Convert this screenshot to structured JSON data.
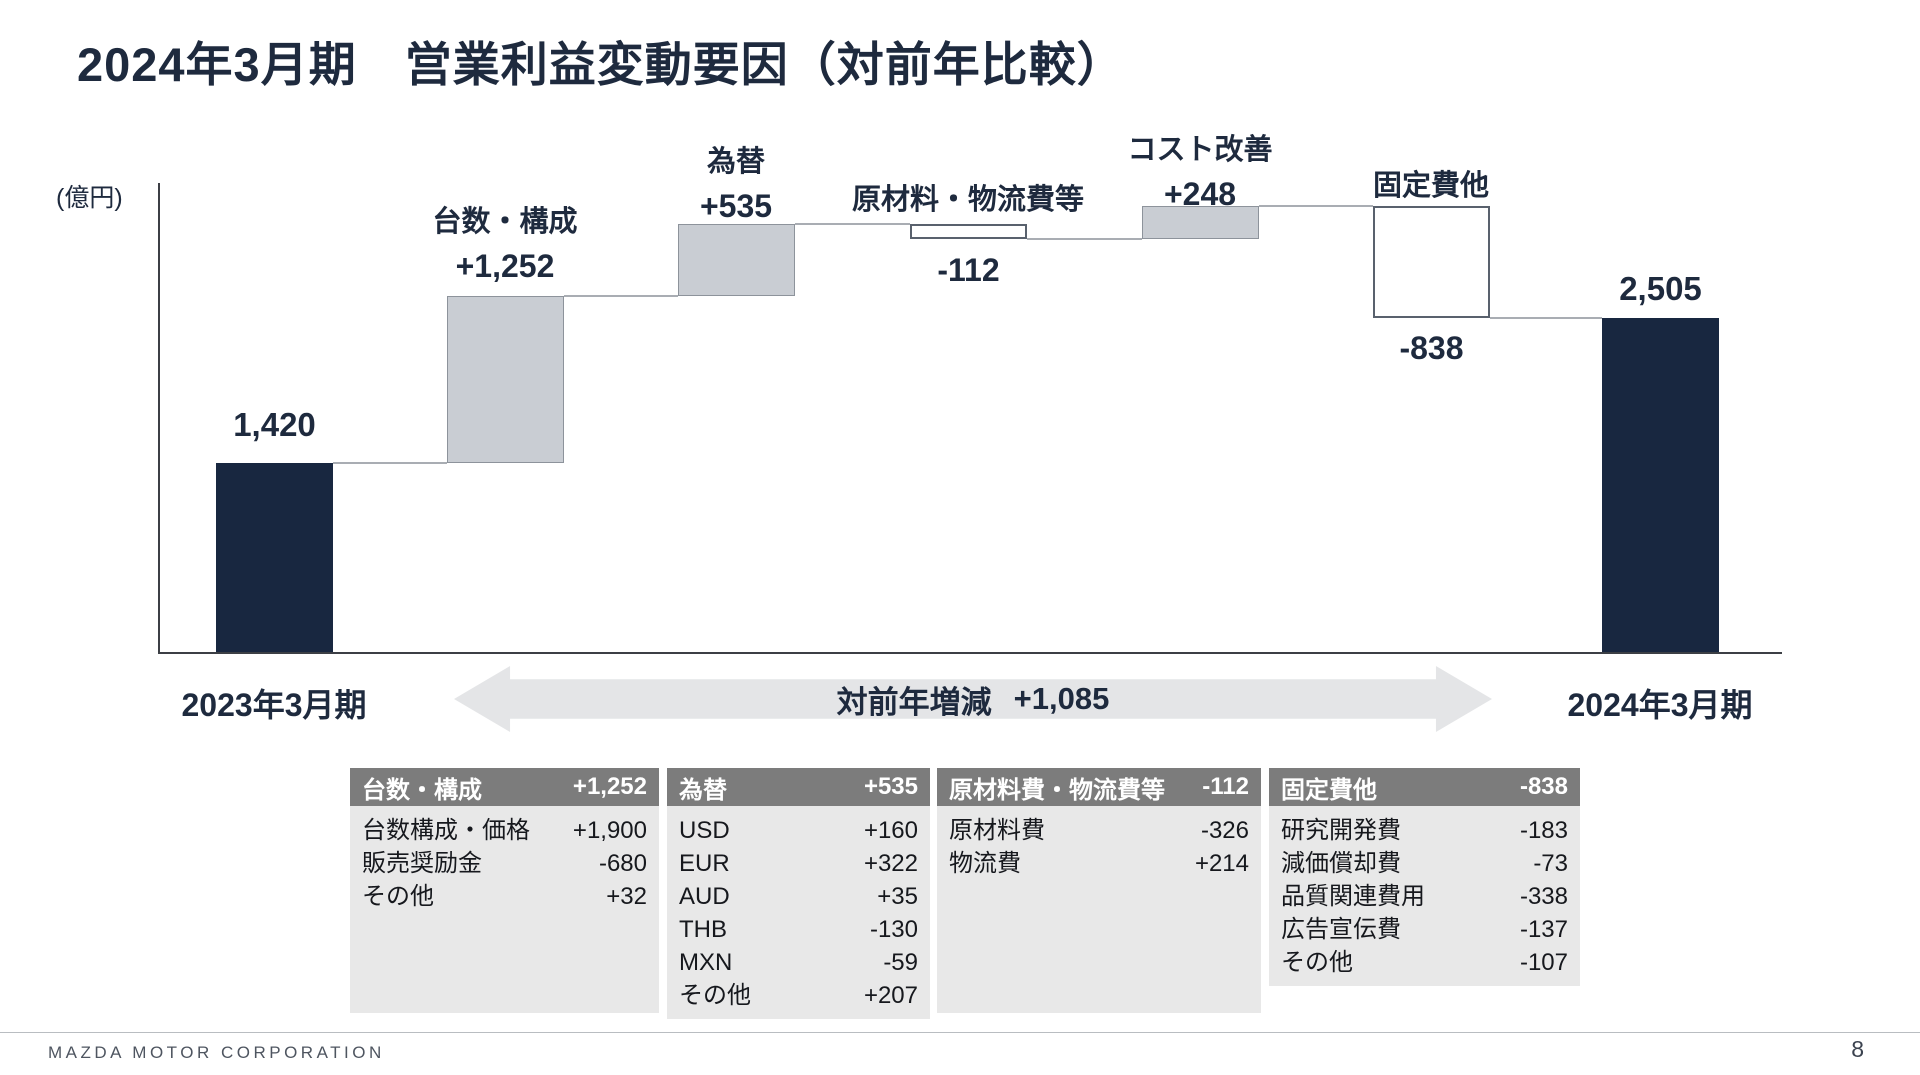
{
  "slide": {
    "title": "2024年3月期　営業利益変動要因（対前年比較）",
    "unit_label": "(億円)",
    "footer": {
      "company": "MAZDA MOTOR CORPORATION",
      "page": "8"
    }
  },
  "chart_data": {
    "type": "waterfall",
    "title": "2024年3月期 営業利益変動要因（対前年比較）",
    "unit": "億円",
    "ylim": [
      0,
      3500
    ],
    "grid": false,
    "start": {
      "label": "2023年3月期",
      "value": 1420,
      "display": "1,420"
    },
    "steps": [
      {
        "label": "台数・構成",
        "value": 1252,
        "display": "+1,252"
      },
      {
        "label": "為替",
        "value": 535,
        "display": "+535"
      },
      {
        "label": "原材料・物流費等",
        "value": -112,
        "display": "-112"
      },
      {
        "label": "コスト改善",
        "value": 248,
        "display": "+248"
      },
      {
        "label": "固定費他",
        "value": -838,
        "display": "-838"
      }
    ],
    "end": {
      "label": "2024年3月期",
      "value": 2505,
      "display": "2,505"
    },
    "total_change": {
      "label": "対前年増減",
      "display": "+1,085"
    }
  },
  "tables": [
    {
      "header": "台数・構成",
      "total": "+1,252",
      "rows": [
        [
          "台数構成・価格",
          "+1,900"
        ],
        [
          "販売奨励金",
          "-680"
        ],
        [
          "その他",
          "+32"
        ]
      ]
    },
    {
      "header": "為替",
      "total": "+535",
      "rows": [
        [
          "USD",
          "+160"
        ],
        [
          "EUR",
          "+322"
        ],
        [
          "AUD",
          "+35"
        ],
        [
          "THB",
          "-130"
        ],
        [
          "MXN",
          "-59"
        ],
        [
          "その他",
          "+207"
        ]
      ]
    },
    {
      "header": "原材料費・物流費等",
      "total": "-112",
      "rows": [
        [
          "原材料費",
          "-326"
        ],
        [
          "物流費",
          "+214"
        ]
      ]
    },
    {
      "header": "固定費他",
      "total": "-838",
      "rows": [
        [
          "研究開発費",
          "-183"
        ],
        [
          "減価償却費",
          "-73"
        ],
        [
          "品質関連費用",
          "-338"
        ],
        [
          "広告宣伝費",
          "-137"
        ],
        [
          "その他",
          "-107"
        ]
      ]
    }
  ],
  "colors": {
    "navy": "#182740",
    "bar_gray": "#c9cdd3",
    "arrow_bg": "#e4e5e7",
    "table_header_bg": "#7c7c7c",
    "table_body_bg": "#e8e8e8"
  }
}
